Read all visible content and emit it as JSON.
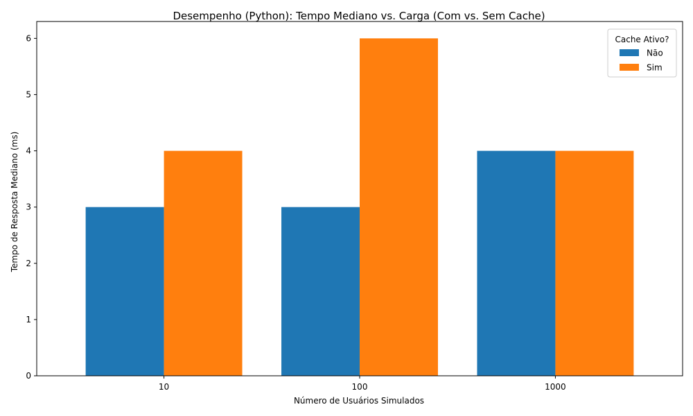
{
  "chart_data": {
    "type": "bar",
    "title": "Desempenho (Python): Tempo Mediano vs. Carga (Com vs. Sem Cache)",
    "xlabel": "Número de Usuários Simulados",
    "ylabel": "Tempo de Resposta Mediano (ms)",
    "categories": [
      "10",
      "100",
      "1000"
    ],
    "series": [
      {
        "name": "Não",
        "values": [
          3,
          3,
          4
        ],
        "color": "#1f77b4"
      },
      {
        "name": "Sim",
        "values": [
          4,
          6,
          4
        ],
        "color": "#ff7f0e"
      }
    ],
    "ylim": [
      0,
      6.3
    ],
    "yticks": [
      "0",
      "1",
      "2",
      "3",
      "4",
      "5",
      "6"
    ],
    "grid": false,
    "legend": {
      "title": "Cache Ativo?",
      "placement": "top-right"
    }
  }
}
